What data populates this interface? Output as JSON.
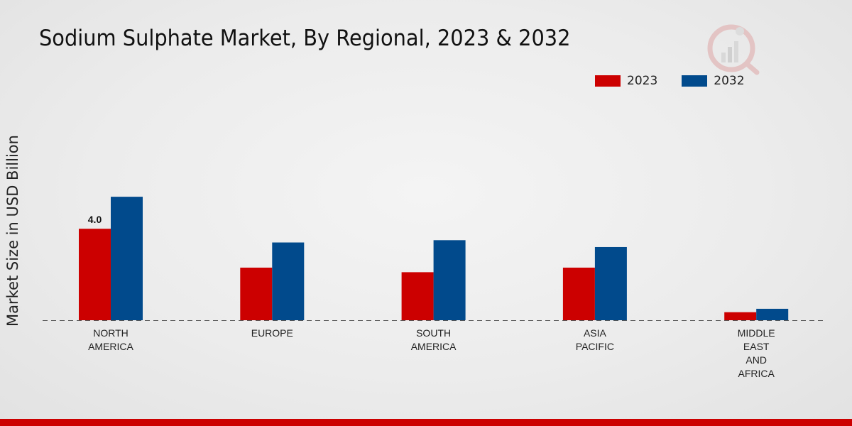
{
  "colors": {
    "series_2023": "#cc0000",
    "series_2032": "#014a8c",
    "baseline": "#555555",
    "bottom_bar": "#cc0000"
  },
  "legend": {
    "items": [
      {
        "label": "2023"
      },
      {
        "label": "2032"
      }
    ]
  },
  "chart_data": {
    "type": "bar",
    "title": "Sodium Sulphate Market, By Regional, 2023 & 2032",
    "xlabel": "",
    "ylabel": "Market Size in USD Billion",
    "categories": [
      [
        "NORTH",
        "AMERICA"
      ],
      [
        "EUROPE"
      ],
      [
        "SOUTH",
        "AMERICA"
      ],
      [
        "ASIA",
        "PACIFIC"
      ],
      [
        "MIDDLE",
        "EAST",
        "AND",
        "AFRICA"
      ]
    ],
    "series": [
      {
        "name": "2023",
        "values": [
          4.0,
          2.3,
          2.1,
          2.3,
          0.35
        ]
      },
      {
        "name": "2032",
        "values": [
          5.4,
          3.4,
          3.5,
          3.2,
          0.5
        ]
      }
    ],
    "data_labels": [
      {
        "series": 0,
        "index": 0,
        "text": "4.0"
      }
    ],
    "ylim": [
      0,
      8
    ],
    "grid": false,
    "legend_position": "top-right"
  }
}
